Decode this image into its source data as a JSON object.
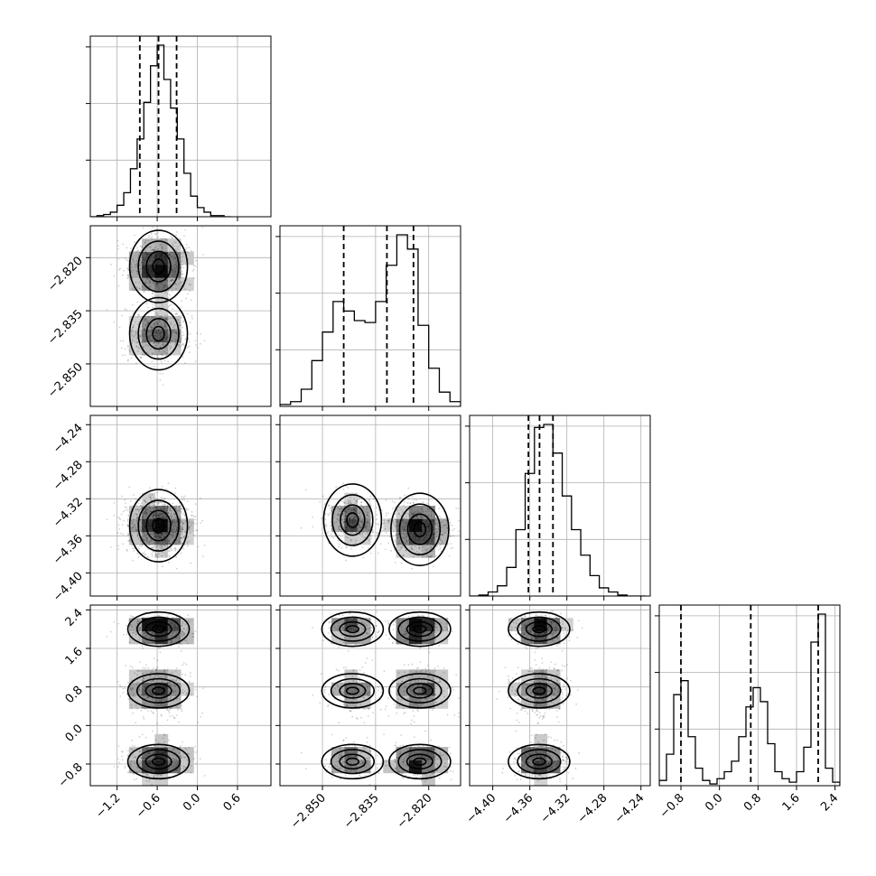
{
  "chart_data": {
    "type": "scatter",
    "subtype": "corner",
    "title": "",
    "grid": true,
    "parameters": [
      {
        "range": [
          -1.6,
          1.1
        ],
        "ticks": [
          -1.2,
          -0.6,
          0.0,
          0.6
        ],
        "tick_labels": [
          "−1.2",
          "−0.6",
          "0.0",
          "0.6"
        ],
        "quantiles": [
          -0.86,
          -0.58,
          -0.31
        ],
        "hist_bins": [
          -1.6,
          -1.5,
          -1.4,
          -1.3,
          -1.2,
          -1.1,
          -1.0,
          -0.9,
          -0.8,
          -0.7,
          -0.6,
          -0.5,
          -0.4,
          -0.3,
          -0.2,
          -0.1,
          0.0,
          0.1,
          0.2,
          0.3,
          0.4,
          0.5
        ],
        "hist_counts": [
          0,
          1,
          2,
          4,
          10,
          21,
          42,
          68,
          100,
          132,
          150,
          120,
          95,
          68,
          38,
          18,
          8,
          4,
          1,
          1,
          0
        ],
        "samples": {
          "type": "gaussian",
          "mean": -0.58,
          "sd": 0.24
        }
      },
      {
        "range": [
          -2.862,
          -2.811
        ],
        "ticks": [
          -2.85,
          -2.835,
          -2.82
        ],
        "tick_labels": [
          "−2.850",
          "−2.835",
          "−2.820"
        ],
        "quantiles": [
          -2.844,
          -2.8318,
          -2.8243
        ],
        "hist_bins": [
          -2.862,
          -2.859,
          -2.856,
          -2.853,
          -2.85,
          -2.847,
          -2.844,
          -2.841,
          -2.838,
          -2.835,
          -2.832,
          -2.829,
          -2.826,
          -2.823,
          -2.82,
          -2.817,
          -2.814,
          -2.811
        ],
        "hist_counts": [
          2,
          5,
          18,
          48,
          78,
          110,
          100,
          90,
          88,
          110,
          148,
          180,
          165,
          85,
          40,
          15,
          5
        ],
        "samples": {
          "type": "bimodal",
          "modes": [
            {
              "mean": -2.8225,
              "sd": 0.0042,
              "weight": 0.62
            },
            {
              "mean": -2.8415,
              "sd": 0.004,
              "weight": 0.38
            }
          ]
        }
      },
      {
        "range": [
          -4.425,
          -4.23
        ],
        "ticks": [
          -4.4,
          -4.36,
          -4.32,
          -4.28,
          -4.24
        ],
        "tick_labels": [
          "−4.40",
          "−4.36",
          "−4.32",
          "−4.28",
          "−4.24"
        ],
        "quantiles": [
          -4.3615,
          -4.3495,
          -4.335
        ],
        "hist_bins": [
          -4.425,
          -4.415,
          -4.405,
          -4.395,
          -4.385,
          -4.375,
          -4.365,
          -4.355,
          -4.345,
          -4.335,
          -4.325,
          -4.315,
          -4.305,
          -4.295,
          -4.285,
          -4.275,
          -4.265,
          -4.255,
          -4.245,
          -4.235
        ],
        "hist_counts": [
          0,
          1,
          4,
          10,
          28,
          65,
          120,
          165,
          168,
          140,
          98,
          65,
          40,
          20,
          8,
          4,
          1,
          0,
          0
        ],
        "samples": {
          "type": "gaussian",
          "mean": -4.349,
          "sd": 0.016
        }
      },
      {
        "range": [
          -1.25,
          2.5
        ],
        "ticks": [
          -0.8,
          0.0,
          0.8,
          1.6,
          2.4
        ],
        "tick_labels": [
          "−0.8",
          "0.0",
          "0.8",
          "1.6",
          "2.4"
        ],
        "quantiles": [
          -0.8,
          0.65,
          2.05
        ],
        "hist_bins": [
          -1.25,
          -1.1,
          -0.95,
          -0.8,
          -0.65,
          -0.5,
          -0.35,
          -0.2,
          -0.05,
          0.1,
          0.25,
          0.4,
          0.55,
          0.7,
          0.85,
          1.0,
          1.15,
          1.3,
          1.45,
          1.6,
          1.75,
          1.9,
          2.05,
          2.2,
          2.35,
          2.5
        ],
        "hist_counts": [
          3,
          18,
          52,
          60,
          28,
          10,
          3,
          1,
          4,
          8,
          14,
          28,
          45,
          56,
          48,
          24,
          8,
          4,
          2,
          8,
          22,
          82,
          98,
          10,
          2
        ],
        "samples": {
          "type": "mixture",
          "modes": [
            {
              "mean": -0.75,
              "sd": 0.2
            },
            {
              "mean": 0.72,
              "sd": 0.25
            },
            {
              "mean": 2.0,
              "sd": 0.15
            }
          ]
        }
      }
    ]
  }
}
